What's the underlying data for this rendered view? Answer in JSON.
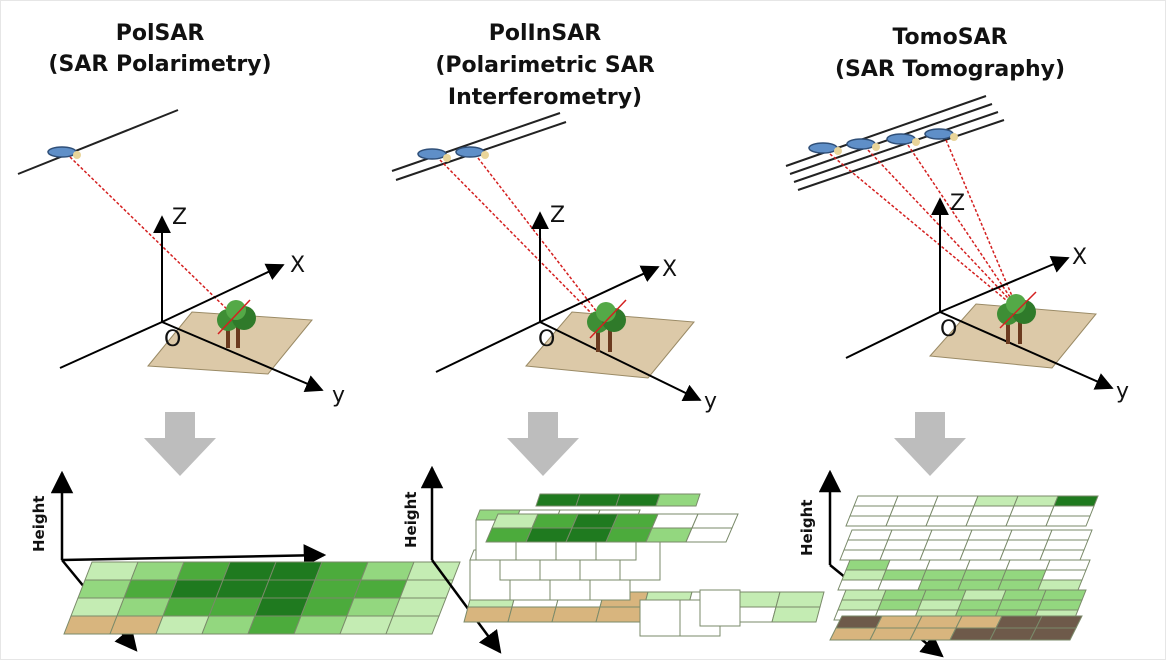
{
  "panels": [
    {
      "title_1": "PolSAR",
      "title_2": "(SAR Polarimetry)",
      "title_3": ""
    },
    {
      "title_1": "PolInSAR",
      "title_2": "(Polarimetric SAR",
      "title_3": "Interferometry)"
    },
    {
      "title_1": "TomoSAR",
      "title_2": "(SAR Tomography)",
      "title_3": ""
    }
  ],
  "axes": {
    "z": "Z",
    "x": "X",
    "y": "y",
    "origin": "O"
  },
  "chart_axis_label": "Height",
  "colors": {
    "ray": "#d42020",
    "ground": "#dcc9a8",
    "arrow": "#bdbdbd",
    "green_dark": "#1f7a1f",
    "green_mid": "#4cab3c",
    "green_light": "#93d77f",
    "green_pale": "#c4ecb3",
    "soil": "#d8b57e",
    "soil_dark": "#6e5a4a"
  }
}
